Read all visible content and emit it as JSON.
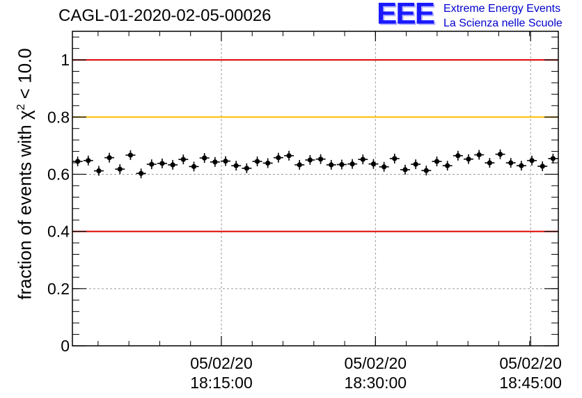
{
  "chart_data": {
    "type": "scatter",
    "title": "CAGL-01-2020-02-05-00026",
    "ylabel_main": "fraction of events with χ",
    "ylabel_sup": "2",
    "ylabel_tail": " < 10.0",
    "xlabel": "",
    "ylim": [
      0,
      1.1
    ],
    "x_range_minutes": [
      0,
      47.3
    ],
    "grid": true,
    "y_ticks": [
      {
        "value": 0,
        "label": "0"
      },
      {
        "value": 0.2,
        "label": "0.2"
      },
      {
        "value": 0.4,
        "label": "0.4"
      },
      {
        "value": 0.6,
        "label": "0.6"
      },
      {
        "value": 0.8,
        "label": "0.8"
      },
      {
        "value": 1.0,
        "label": "1"
      }
    ],
    "x_ticks": [
      {
        "minute": 14.5,
        "date": "05/02/20",
        "time": "18:15:00"
      },
      {
        "minute": 29.5,
        "date": "05/02/20",
        "time": "18:30:00"
      },
      {
        "minute": 44.6,
        "date": "05/02/20",
        "time": "18:45:00"
      }
    ],
    "reference_lines": [
      {
        "value": 1.0,
        "color": "#dd0000"
      },
      {
        "value": 0.8,
        "color": "#ffbf00"
      },
      {
        "value": 0.4,
        "color": "#dd0000"
      }
    ],
    "points": [
      0.645,
      0.648,
      0.612,
      0.658,
      0.618,
      0.667,
      0.603,
      0.635,
      0.638,
      0.633,
      0.652,
      0.627,
      0.657,
      0.643,
      0.646,
      0.63,
      0.621,
      0.645,
      0.639,
      0.658,
      0.665,
      0.633,
      0.65,
      0.653,
      0.633,
      0.634,
      0.636,
      0.652,
      0.636,
      0.626,
      0.655,
      0.616,
      0.635,
      0.613,
      0.645,
      0.63,
      0.665,
      0.653,
      0.668,
      0.64,
      0.67,
      0.64,
      0.63,
      0.648,
      0.628,
      0.655
    ],
    "point_color": "#000000"
  },
  "logo": {
    "mark": "EEE",
    "line1": "Extreme Energy Events",
    "line2": "La Scienza nelle Scuole"
  }
}
